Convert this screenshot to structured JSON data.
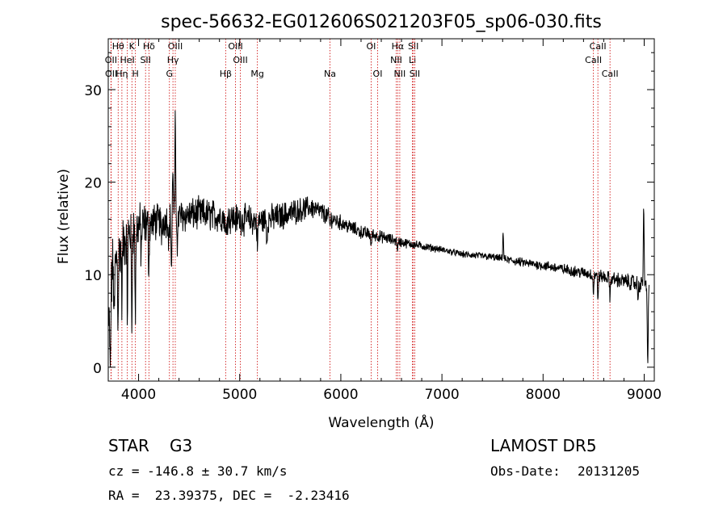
{
  "chart_data": {
    "type": "line",
    "title": "spec-56632-EG012606S021203F05_sp06-030.fits",
    "xlabel": "Wavelength (Å)",
    "ylabel": "Flux (relative)",
    "xlim": [
      3700,
      9100
    ],
    "ylim": [
      -1.5,
      35.5
    ],
    "x_ticks": [
      4000,
      5000,
      6000,
      7000,
      8000,
      9000
    ],
    "y_ticks": [
      0,
      10,
      20,
      30
    ],
    "grid": false,
    "line_color": "#000000",
    "marker_color": "#cc0000",
    "continuum": [
      [
        3700,
        3
      ],
      [
        3720,
        7
      ],
      [
        3760,
        11
      ],
      [
        3800,
        12.5
      ],
      [
        3850,
        13.5
      ],
      [
        3900,
        14.5
      ],
      [
        3950,
        15
      ],
      [
        4000,
        15.2
      ],
      [
        4100,
        15.5
      ],
      [
        4200,
        15.8
      ],
      [
        4300,
        16
      ],
      [
        4400,
        16.3
      ],
      [
        4600,
        16.6
      ],
      [
        4800,
        16.3
      ],
      [
        5000,
        16
      ],
      [
        5200,
        15.8
      ],
      [
        5400,
        16.3
      ],
      [
        5600,
        17
      ],
      [
        5700,
        17.3
      ],
      [
        5800,
        16.8
      ],
      [
        5900,
        16.1
      ],
      [
        6000,
        15.6
      ],
      [
        6200,
        14.6
      ],
      [
        6400,
        14.1
      ],
      [
        6600,
        13.5
      ],
      [
        6800,
        13.1
      ],
      [
        7000,
        12.7
      ],
      [
        7200,
        12.2
      ],
      [
        7500,
        11.9
      ],
      [
        7800,
        11.3
      ],
      [
        8000,
        11
      ],
      [
        8300,
        10.4
      ],
      [
        8500,
        10
      ],
      [
        8700,
        9.5
      ],
      [
        8900,
        9.1
      ],
      [
        8980,
        8.9
      ]
    ],
    "features": [
      {
        "x": 3720,
        "depth": 8
      },
      {
        "x": 3740,
        "depth": -2
      },
      {
        "x": 3760,
        "depth": 6
      },
      {
        "x": 3797,
        "depth": 7
      },
      {
        "x": 3835,
        "depth": 6
      },
      {
        "x": 3889,
        "depth": 8
      },
      {
        "x": 3933,
        "depth": 11
      },
      {
        "x": 3968,
        "depth": 9
      },
      {
        "x": 4026,
        "depth": 3
      },
      {
        "x": 4101,
        "depth": 4.5
      },
      {
        "x": 4226,
        "depth": 2
      },
      {
        "x": 4300,
        "depth": 2.5
      },
      {
        "x": 4325,
        "depth": 5.5
      },
      {
        "x": 4340,
        "depth": -6
      },
      {
        "x": 4363,
        "depth": -10
      },
      {
        "x": 4385,
        "depth": 3
      },
      {
        "x": 4861,
        "depth": 2.5
      },
      {
        "x": 5175,
        "depth": 3
      },
      {
        "x": 5270,
        "depth": 2.5
      },
      {
        "x": 5893,
        "depth": 1
      },
      {
        "x": 6300,
        "depth": 1.5
      },
      {
        "x": 6563,
        "depth": 1
      },
      {
        "x": 7605,
        "depth": -3
      },
      {
        "x": 8498,
        "depth": 2
      },
      {
        "x": 8542,
        "depth": 2.5
      },
      {
        "x": 8662,
        "depth": 2
      },
      {
        "x": 8940,
        "depth": 1.5
      },
      {
        "x": 8995,
        "depth": -9
      },
      {
        "x": 9035,
        "depth": 9
      }
    ],
    "noise_amplitude": [
      [
        3700,
        3
      ],
      [
        3900,
        2.5
      ],
      [
        4200,
        1.6
      ],
      [
        4500,
        1.5
      ],
      [
        5000,
        1.4
      ],
      [
        5500,
        1.2
      ],
      [
        6000,
        0.7
      ],
      [
        6500,
        0.5
      ],
      [
        7000,
        0.3
      ],
      [
        7500,
        0.35
      ],
      [
        8000,
        0.45
      ],
      [
        8500,
        0.55
      ],
      [
        9000,
        0.8
      ]
    ],
    "line_markers": [
      {
        "label": "Hθ",
        "x": 3798,
        "row": 0
      },
      {
        "label": "K",
        "x": 3934,
        "row": 0
      },
      {
        "label": "Hδ",
        "x": 4102,
        "row": 0
      },
      {
        "label": "OIII",
        "x": 4363,
        "row": 0
      },
      {
        "label": "OIII",
        "x": 4959,
        "row": 0
      },
      {
        "label": "OI",
        "x": 6300,
        "row": 0
      },
      {
        "label": "Hα",
        "x": 6563,
        "row": 0
      },
      {
        "label": "SII",
        "x": 6717,
        "row": 0
      },
      {
        "label": "CaII",
        "x": 8542,
        "row": 0
      },
      {
        "label": "OII",
        "x": 3727,
        "row": 1
      },
      {
        "label": "HeI",
        "x": 3889,
        "row": 1
      },
      {
        "label": "SII",
        "x": 4069,
        "row": 1
      },
      {
        "label": "Hγ",
        "x": 4340,
        "row": 1
      },
      {
        "label": "OIII",
        "x": 5007,
        "row": 1
      },
      {
        "label": "NII",
        "x": 6548,
        "row": 1
      },
      {
        "label": "Li",
        "x": 6708,
        "row": 1
      },
      {
        "label": "CaII",
        "x": 8498,
        "row": 1
      },
      {
        "label": "OII",
        "x": 3729,
        "row": 2
      },
      {
        "label": "Hη",
        "x": 3835,
        "row": 2
      },
      {
        "label": "H",
        "x": 3969,
        "row": 2
      },
      {
        "label": "G",
        "x": 4305,
        "row": 2
      },
      {
        "label": "Hβ",
        "x": 4861,
        "row": 2
      },
      {
        "label": "Mg",
        "x": 5175,
        "row": 2
      },
      {
        "label": "Na",
        "x": 5893,
        "row": 2
      },
      {
        "label": "OI",
        "x": 6364,
        "row": 2
      },
      {
        "label": "NII",
        "x": 6583,
        "row": 2
      },
      {
        "label": "SII",
        "x": 6731,
        "row": 2
      },
      {
        "label": "CaII",
        "x": 8662,
        "row": 2
      }
    ]
  },
  "info": {
    "object_class": "STAR",
    "subclass": "G3",
    "survey": "LAMOST DR5",
    "redshift_text": "cz = -146.8 ± 30.7 km/s",
    "obs_date_label": "Obs-Date:",
    "obs_date": "20131205",
    "coords_text": "RA =  23.39375, DEC =  -2.23416"
  }
}
